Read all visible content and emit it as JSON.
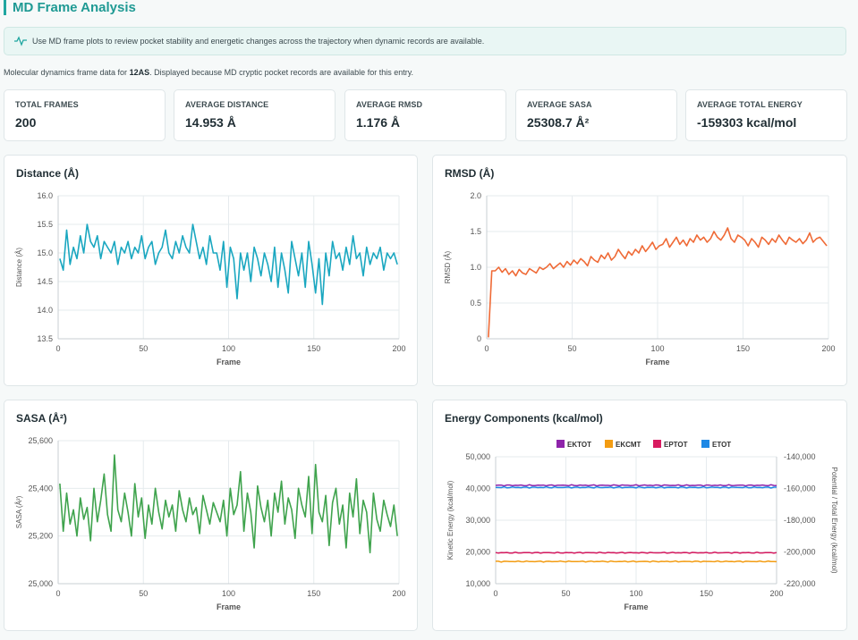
{
  "page": {
    "title": "MD Frame Analysis",
    "info": "Use MD frame plots to review pocket stability and energetic changes across the trajectory when dynamic records are available.",
    "desc_prefix": "Molecular dynamics frame data for ",
    "pdb_id": "12AS",
    "desc_suffix": ". Displayed because MD cryptic pocket records are available for this entry."
  },
  "stats": [
    {
      "label": "TOTAL FRAMES",
      "value": "200"
    },
    {
      "label": "AVERAGE DISTANCE",
      "value": "14.953 Å"
    },
    {
      "label": "AVERAGE RMSD",
      "value": "1.176 Å"
    },
    {
      "label": "AVERAGE SASA",
      "value": "25308.7 Å²"
    },
    {
      "label": "AVERAGE TOTAL ENERGY",
      "value": "-159303 kcal/mol"
    }
  ],
  "colors": {
    "accent": "#1fa6a0",
    "distance": "#1aa7c0",
    "rmsd": "#ef6a36",
    "sasa": "#3fa34d",
    "ektot": "#8e24aa",
    "ekcmt": "#f39c12",
    "eptot": "#d81b60",
    "etot": "#1e88e5"
  },
  "icons": {
    "info": "activity-pulse-icon"
  },
  "chart_data": [
    {
      "id": "distance",
      "type": "line",
      "title": "Distance (Å)",
      "xlabel": "Frame",
      "ylabel": "Distance (Å)",
      "xlim": [
        0,
        200
      ],
      "ylim": [
        13.5,
        16.0
      ],
      "xticks": [
        "0",
        "50",
        "100",
        "150",
        "200"
      ],
      "yticks": [
        "13.5",
        "14.0",
        "14.5",
        "15.0",
        "15.5",
        "16.0"
      ],
      "x_start": 1,
      "x_step": 2,
      "series": [
        {
          "values": [
            14.9,
            14.7,
            15.4,
            14.8,
            15.1,
            14.9,
            15.3,
            15.0,
            15.5,
            15.2,
            15.1,
            15.3,
            14.9,
            15.2,
            15.1,
            15.0,
            15.2,
            14.8,
            15.1,
            15.0,
            15.2,
            14.9,
            15.1,
            15.0,
            15.3,
            14.9,
            15.1,
            15.2,
            14.8,
            15.0,
            15.1,
            15.4,
            15.0,
            14.9,
            15.2,
            15.0,
            15.3,
            15.1,
            15.0,
            15.5,
            15.2,
            14.9,
            15.1,
            14.8,
            15.3,
            15.0,
            15.0,
            14.7,
            15.2,
            14.4,
            15.1,
            14.9,
            14.2,
            15.0,
            14.7,
            15.0,
            14.5,
            15.1,
            14.9,
            14.6,
            15.0,
            14.8,
            14.5,
            15.1,
            14.4,
            15.0,
            14.7,
            14.3,
            15.2,
            14.9,
            14.6,
            15.0,
            14.4,
            15.2,
            14.8,
            14.3,
            14.9,
            14.1,
            15.0,
            14.6,
            15.2,
            14.9,
            15.0,
            14.7,
            15.1,
            14.8,
            15.3,
            14.9,
            15.0,
            14.6,
            15.1,
            14.8,
            15.0,
            14.9,
            15.1,
            14.7,
            15.0,
            14.9,
            15.0,
            14.8
          ]
        }
      ]
    },
    {
      "id": "rmsd",
      "type": "line",
      "title": "RMSD (Å)",
      "xlabel": "Frame",
      "ylabel": "RMSD (Å)",
      "xlim": [
        0,
        200
      ],
      "ylim": [
        0,
        2.0
      ],
      "xticks": [
        "0",
        "50",
        "100",
        "150",
        "200"
      ],
      "yticks": [
        "0",
        "0.5",
        "1.0",
        "1.5",
        "2.0"
      ],
      "x_start": 1,
      "x_step": 2,
      "series": [
        {
          "values": [
            0.02,
            0.95,
            0.95,
            1.0,
            0.93,
            0.98,
            0.9,
            0.95,
            0.88,
            0.97,
            0.92,
            0.9,
            0.98,
            0.95,
            0.92,
            1.0,
            0.97,
            1.0,
            1.05,
            0.98,
            1.02,
            1.06,
            1.0,
            1.08,
            1.03,
            1.1,
            1.05,
            1.12,
            1.08,
            1.02,
            1.15,
            1.1,
            1.07,
            1.17,
            1.12,
            1.2,
            1.1,
            1.15,
            1.25,
            1.18,
            1.12,
            1.22,
            1.17,
            1.25,
            1.2,
            1.3,
            1.22,
            1.28,
            1.35,
            1.25,
            1.3,
            1.32,
            1.4,
            1.28,
            1.35,
            1.42,
            1.32,
            1.38,
            1.3,
            1.4,
            1.35,
            1.45,
            1.38,
            1.42,
            1.35,
            1.4,
            1.5,
            1.42,
            1.38,
            1.45,
            1.55,
            1.4,
            1.35,
            1.45,
            1.42,
            1.38,
            1.3,
            1.4,
            1.35,
            1.28,
            1.42,
            1.38,
            1.32,
            1.4,
            1.35,
            1.45,
            1.38,
            1.32,
            1.42,
            1.38,
            1.35,
            1.4,
            1.33,
            1.38,
            1.48,
            1.35,
            1.4,
            1.42,
            1.36,
            1.3
          ]
        }
      ]
    },
    {
      "id": "sasa",
      "type": "line",
      "title": "SASA (Å²)",
      "xlabel": "Frame",
      "ylabel": "SASA (Å²)",
      "xlim": [
        0,
        200
      ],
      "ylim": [
        25000,
        25600
      ],
      "xticks": [
        "0",
        "50",
        "100",
        "150",
        "200"
      ],
      "yticks": [
        "25,000",
        "25,200",
        "25,400",
        "25,600"
      ],
      "x_start": 1,
      "x_step": 2,
      "series": [
        {
          "values": [
            25420,
            25220,
            25380,
            25250,
            25310,
            25200,
            25360,
            25270,
            25320,
            25180,
            25400,
            25260,
            25350,
            25460,
            25290,
            25220,
            25540,
            25310,
            25260,
            25380,
            25300,
            25200,
            25420,
            25280,
            25360,
            25190,
            25330,
            25250,
            25400,
            25300,
            25230,
            25350,
            25280,
            25330,
            25220,
            25390,
            25310,
            25260,
            25360,
            25290,
            25320,
            25210,
            25370,
            25310,
            25250,
            25340,
            25300,
            25260,
            25350,
            25200,
            25400,
            25290,
            25330,
            25470,
            25220,
            25380,
            25300,
            25150,
            25410,
            25320,
            25260,
            25350,
            25200,
            25380,
            25300,
            25430,
            25250,
            25360,
            25310,
            25190,
            25400,
            25330,
            25280,
            25450,
            25210,
            25500,
            25300,
            25260,
            25370,
            25160,
            25340,
            25400,
            25250,
            25330,
            25150,
            25380,
            25280,
            25440,
            25210,
            25350,
            25300,
            25130,
            25380,
            25270,
            25220,
            25350,
            25290,
            25240,
            25330,
            25200
          ]
        }
      ]
    },
    {
      "id": "energy",
      "type": "line",
      "title": "Energy Components (kcal/mol)",
      "xlabel": "Frame",
      "ylabel": "Kinetic Energy (kcal/mol)",
      "y2label": "Potential / Total Energy (kcal/mol)",
      "xlim": [
        0,
        200
      ],
      "ylim": [
        10000,
        50000
      ],
      "y2lim": [
        -220000,
        -140000
      ],
      "xticks": [
        "0",
        "50",
        "100",
        "150",
        "200"
      ],
      "yticks": [
        "10,000",
        "20,000",
        "30,000",
        "40,000",
        "50,000"
      ],
      "y2ticks": [
        "-220,000",
        "-200,000",
        "-180,000",
        "-160,000",
        "-140,000"
      ],
      "legend_position": "top-center",
      "series": [
        {
          "name": "EKTOT",
          "axis": "left",
          "mean": 41000,
          "noise": 200
        },
        {
          "name": "EKCMT",
          "axis": "left",
          "mean": 17000,
          "noise": 180
        },
        {
          "name": "EPTOT",
          "axis": "right",
          "mean": -200500,
          "noise": 350
        },
        {
          "name": "ETOT",
          "axis": "right",
          "mean": -159303,
          "noise": 400
        }
      ]
    }
  ]
}
